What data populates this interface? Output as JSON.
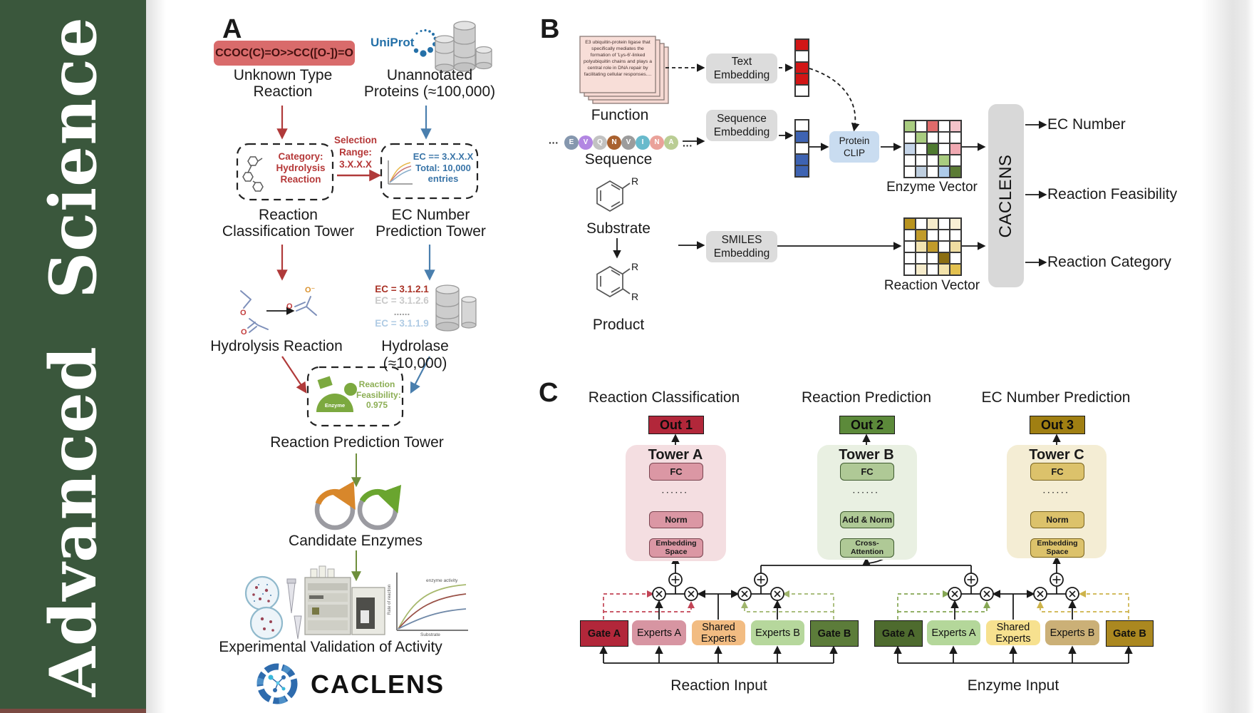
{
  "journal": {
    "name": "Advanced Science",
    "band_color": "#3A573C",
    "strip_color": "#7B4A42"
  },
  "panel_a": {
    "label": "A",
    "smiles": "CCOC(C)=O>>CC([O-])=O",
    "unknown_reaction": "Unknown Type\nReaction",
    "uniprot": "UniProt",
    "unannotated": "Unannotated\nProteins (≈100,000)",
    "selection_range": "Selection\nRange:\n3.X.X.X",
    "category_box": "Category:\nHydrolysis\nReaction",
    "ec_box": "EC == 3.X.X.X\nTotal: 10,000\nentries",
    "classification_tower": "Reaction\nClassification Tower",
    "ec_tower": "EC Number\nPrediction Tower",
    "ec_list": [
      {
        "text": "EC = 3.1.2.1",
        "color": "#A93226"
      },
      {
        "text": "EC = 3.1.2.6",
        "color": "#C9C9C9"
      },
      {
        "text": "......",
        "color": "#9B9B9B"
      },
      {
        "text": "EC = 3.1.1.9",
        "color": "#AFCBE4"
      }
    ],
    "hydrolysis": "Hydrolysis Reaction",
    "hydrolase": "Hydrolase (≈10,000)",
    "enzyme_icon_label": "Enzyme",
    "feasibility": "Reaction\nFeasibility:\n0.975",
    "prediction_tower": "Reaction Prediction Tower",
    "candidates": "Candidate Enzymes",
    "validation": "Experimental Validation of Activity",
    "activity_chart": {
      "series_label": "enzyme activity",
      "ylabel": "Rate of reaction",
      "xlabel": "Substrate"
    },
    "atoms": {
      "o": "O",
      "o_minus": "O⁻"
    },
    "brand": "CACLENS"
  },
  "panel_b": {
    "label": "B",
    "function_card": "E3 ubiquitin-protein ligase that specifically mediates the formation of 'Lys-6'-linked polyubiquitin chains and plays a central role in DNA repair by facilitating cellular responses....",
    "function_label": "Function",
    "ellipsis": "···",
    "sequence_letters": [
      {
        "ch": "E",
        "color": "#8597AE"
      },
      {
        "ch": "V",
        "color": "#B286E2"
      },
      {
        "ch": "Q",
        "color": "#C2C2C2"
      },
      {
        "ch": "N",
        "color": "#A9612F"
      },
      {
        "ch": "V",
        "color": "#9C9C9C"
      },
      {
        "ch": "I",
        "color": "#68BACC"
      },
      {
        "ch": "N",
        "color": "#EAA29A"
      },
      {
        "ch": "A",
        "color": "#BACD94"
      }
    ],
    "sequence_label": "Sequence",
    "substrate_label": "Substrate",
    "product_label": "Product",
    "r_group": "R",
    "text_embedding": "Text\nEmbedding",
    "sequence_embedding": "Sequence\nEmbedding",
    "smiles_embedding": "SMILES\nEmbedding",
    "protein_clip": "Protein\nCLIP",
    "text_vector": [
      "#D21616",
      "#FFFFFF",
      "#D21616",
      "#D21616",
      "#FFFFFF"
    ],
    "sequence_vector": [
      "#FFFFFF",
      "#3E63B2",
      "#FFFFFF",
      "#3E63B2",
      "#3E63B2"
    ],
    "enzyme_matrix": [
      [
        "#A9CC80",
        "#FFFFFF",
        "#DF6B6B",
        "#FFFFFF",
        "#F3C3CA"
      ],
      [
        "#FFFFFF",
        "#A9CC80",
        "#FFFFFF",
        "#FFFFFF",
        "#FFFFFF"
      ],
      [
        "#C5D5E9",
        "#FFFFFF",
        "#4F7A30",
        "#FFFFFF",
        "#F0A9B2"
      ],
      [
        "#FFFFFF",
        "#FFFFFF",
        "#FFFFFF",
        "#A9CC80",
        "#FFFFFF"
      ],
      [
        "#FFFFFF",
        "#BFCFE0",
        "#FFFFFF",
        "#AECBE9",
        "#5B7B35"
      ]
    ],
    "reaction_matrix": [
      [
        "#B8931F",
        "#FFFFFF",
        "#F6ECCB",
        "#FFFFFF",
        "#F8F0D5"
      ],
      [
        "#FFFFFF",
        "#C19B2A",
        "#FFFFFF",
        "#FFFFFF",
        "#FFFFFF"
      ],
      [
        "#FFFFFF",
        "#F2E4B2",
        "#C19B2A",
        "#FFFFFF",
        "#EFDDA2"
      ],
      [
        "#FFFFFF",
        "#FFFFFF",
        "#FFFFFF",
        "#8B6E12",
        "#FFFFFF"
      ],
      [
        "#FFFFFF",
        "#F6ECCB",
        "#FFFFFF",
        "#F3E3AB",
        "#E3C150"
      ]
    ],
    "enzyme_vector_label": "Enzyme Vector",
    "reaction_vector_label": "Reaction Vector",
    "caclens": "CACLENS",
    "outputs": [
      "EC Number",
      "Reaction Feasibility",
      "Reaction Category"
    ]
  },
  "panel_c": {
    "label": "C",
    "towers": [
      {
        "header": "Reaction Classification",
        "out": "Out 1",
        "title": "Tower A",
        "top_box": "FC",
        "dots": "······",
        "mid_box": "Norm",
        "bottom_box": "Embedding\nSpace",
        "out_color": "#B2273A",
        "panel_color": "#F4DEE1",
        "box_color": "#DB97A4",
        "box_border": "#7A4450"
      },
      {
        "header": "Reaction Prediction",
        "out": "Out 2",
        "title": "Tower B",
        "top_box": "FC",
        "dots": "······",
        "mid_box": "Add & Norm",
        "bottom_box": "Cross-\nAttention",
        "out_color": "#5C8A3A",
        "panel_color": "#E9F0E2",
        "box_color": "#AFC996",
        "box_border": "#3E5A2E"
      },
      {
        "header": "EC Number Prediction",
        "out": "Out 3",
        "title": "Tower C",
        "top_box": "FC",
        "dots": "······",
        "mid_box": "Norm",
        "bottom_box": "Embedding\nSpace",
        "out_color": "#A07F12",
        "panel_color": "#F4EDD4",
        "box_color": "#DCC26B",
        "box_border": "#7A6520"
      }
    ],
    "groups": [
      {
        "label": "Reaction Input",
        "boxes": [
          {
            "text": "Gate A",
            "bg": "#B2273A",
            "gate": true
          },
          {
            "text": "Experts A",
            "bg": "#D795A2"
          },
          {
            "text": "Shared\nExperts",
            "bg": "#F2BC82"
          },
          {
            "text": "Experts B",
            "bg": "#B6D79C"
          },
          {
            "text": "Gate B",
            "bg": "#5C7C3A",
            "gate": true
          }
        ]
      },
      {
        "label": "Enzyme Input",
        "boxes": [
          {
            "text": "Gate A",
            "bg": "#4E6B2E",
            "gate": true
          },
          {
            "text": "Experts A",
            "bg": "#B4D79A"
          },
          {
            "text": "Shared\nExperts",
            "bg": "#F7E18F"
          },
          {
            "text": "Experts B",
            "bg": "#CBB077"
          },
          {
            "text": "Gate B",
            "bg": "#AB8820",
            "gate": true
          }
        ]
      }
    ]
  }
}
